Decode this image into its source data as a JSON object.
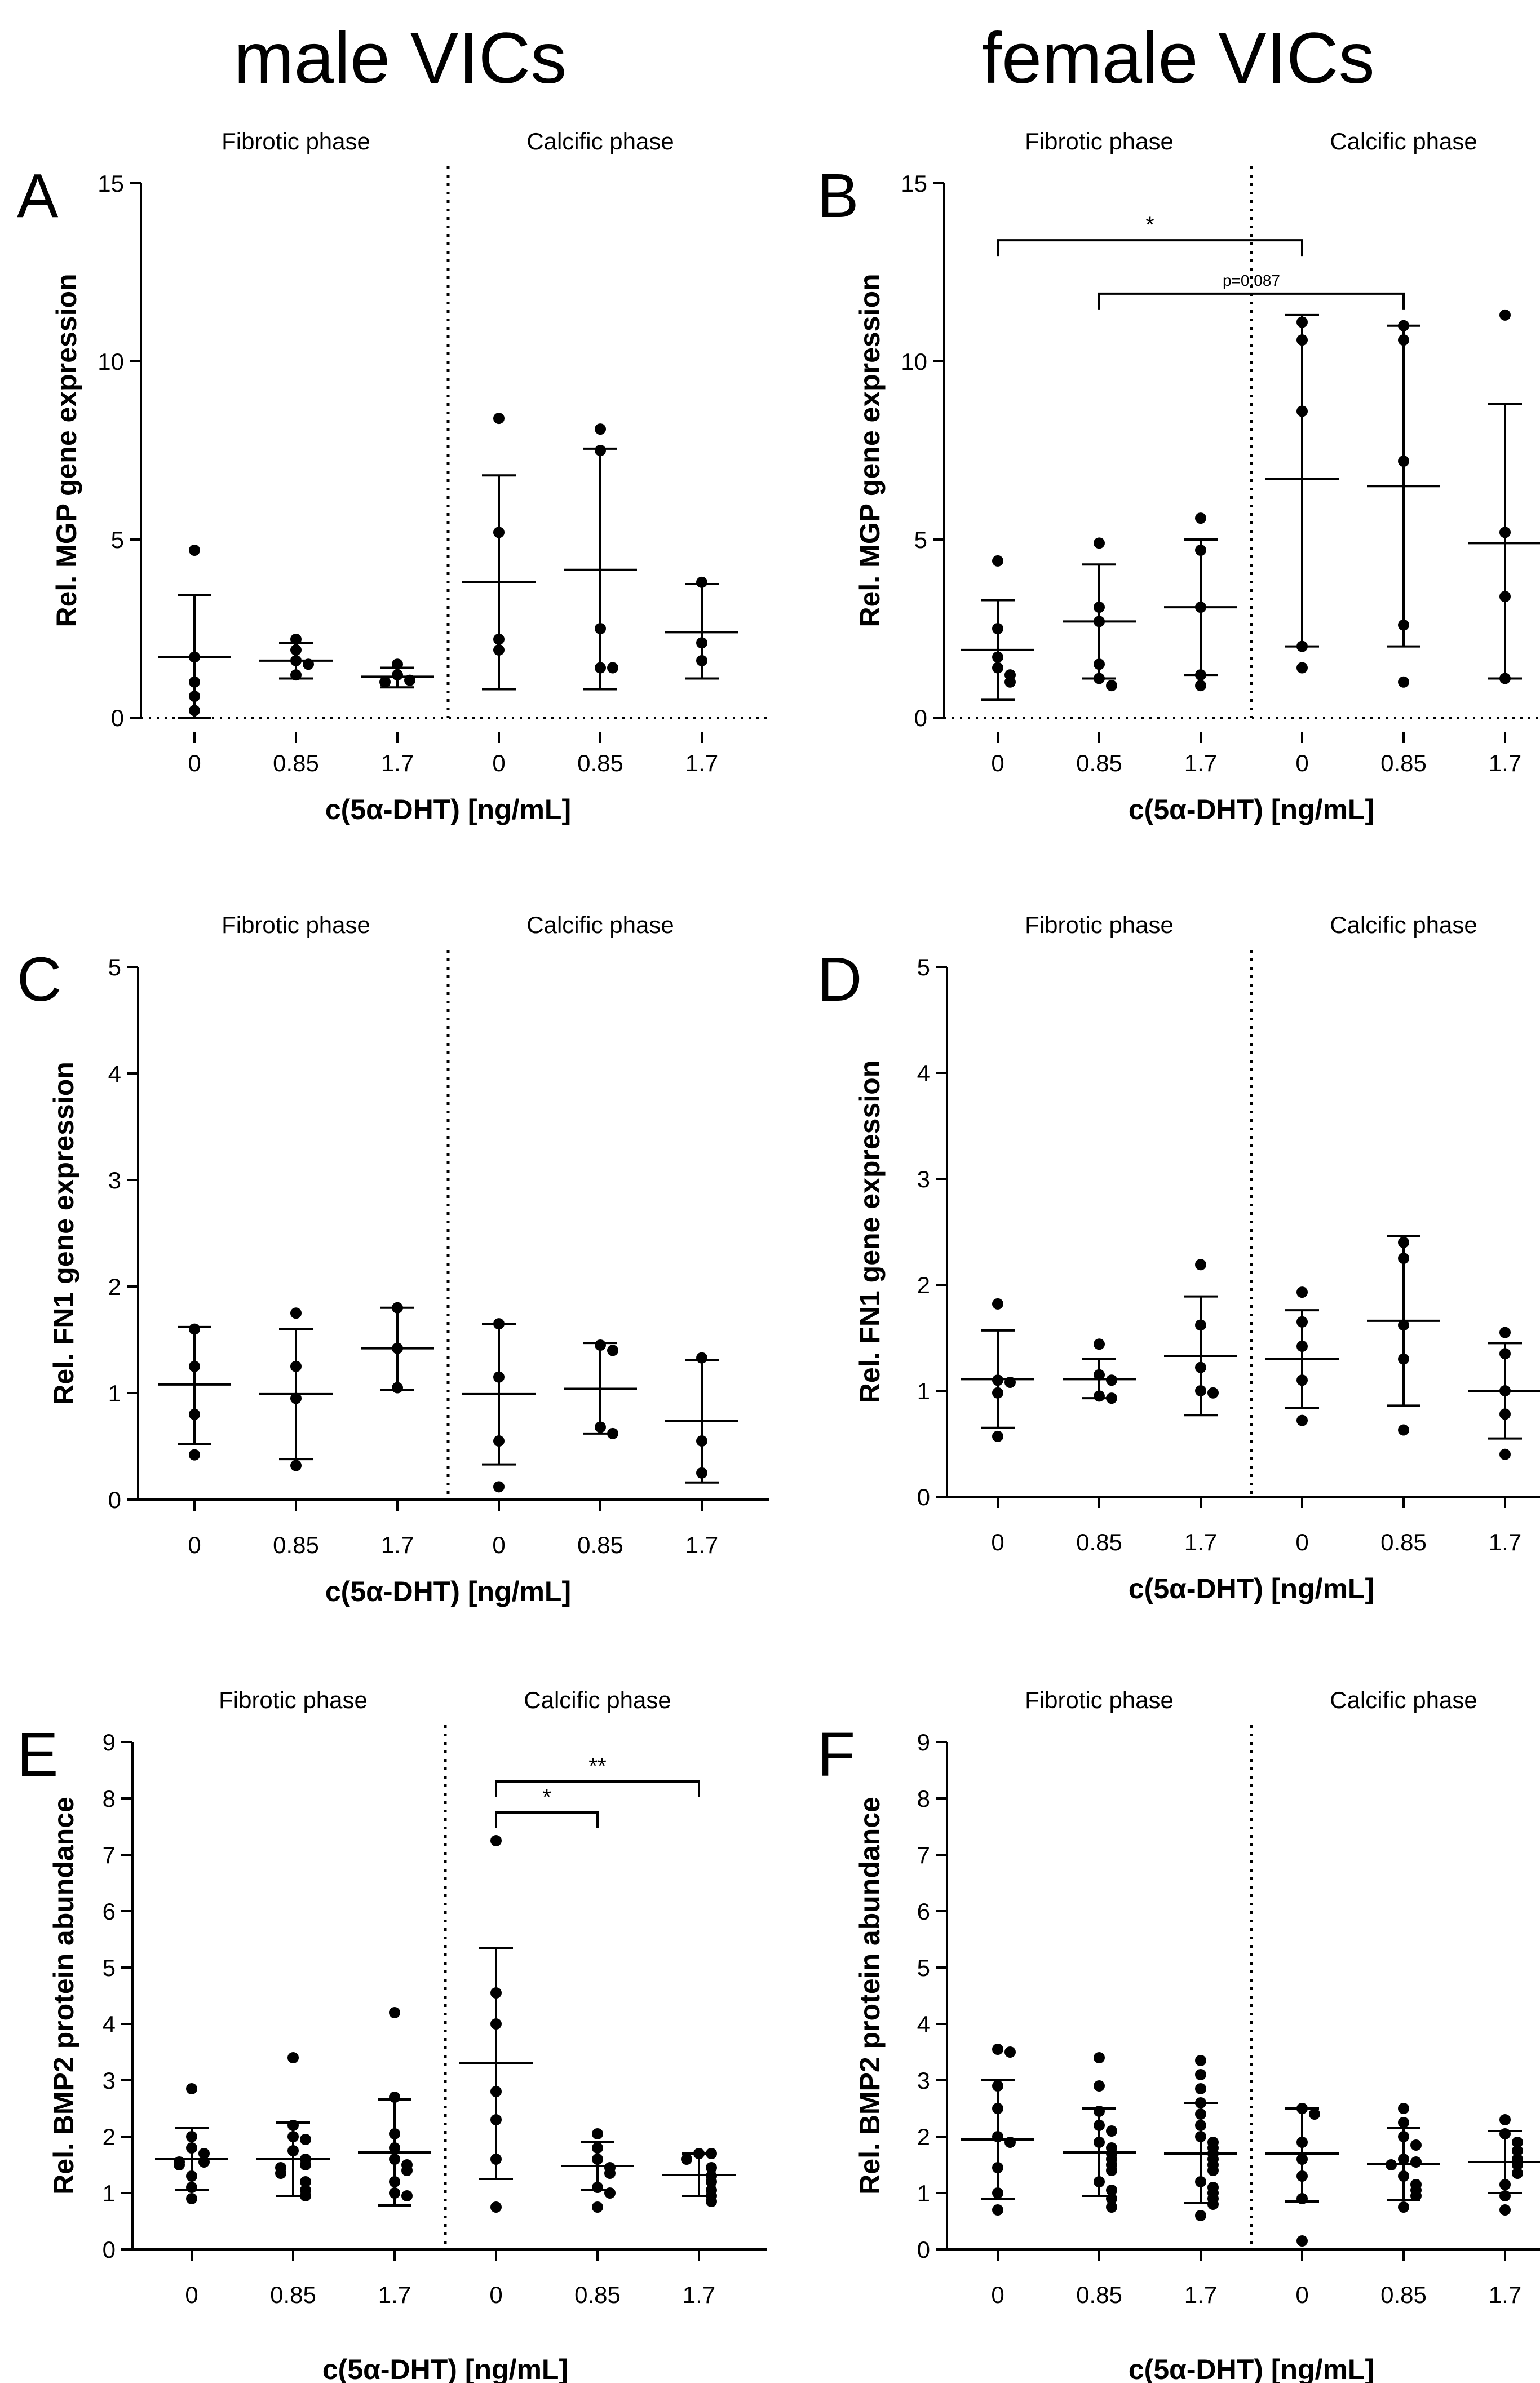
{
  "figure": {
    "column_titles": [
      "male VICs",
      "female VICs"
    ]
  },
  "chart_data": [
    {
      "type": "scatter",
      "panel_letter": "A",
      "phase_labels": [
        "Fibrotic phase",
        "Calcific phase"
      ],
      "categories": [
        "0",
        "0.85",
        "1.7",
        "0",
        "0.85",
        "1.7"
      ],
      "xlabel": "c(5α-DHT) [ng/mL]",
      "ylabel": "Rel. MGP gene expression",
      "ylim": [
        0,
        15
      ],
      "yticks": [
        0,
        5,
        10,
        15
      ],
      "groups": [
        {
          "points": [
            4.7,
            1.7,
            1.0,
            0.6,
            0.2
          ],
          "mean": 1.7,
          "sd_low": 0.0,
          "sd_high": 3.45
        },
        {
          "points": [
            2.2,
            1.9,
            1.6,
            1.5,
            1.2
          ],
          "mean": 1.6,
          "sd_low": 1.1,
          "sd_high": 2.1
        },
        {
          "points": [
            1.5,
            1.2,
            1.05,
            1.0
          ],
          "mean": 1.15,
          "sd_low": 0.85,
          "sd_high": 1.4
        },
        {
          "points": [
            8.4,
            5.2,
            2.2,
            1.9
          ],
          "mean": 3.8,
          "sd_low": 0.8,
          "sd_high": 6.8
        },
        {
          "points": [
            8.1,
            7.5,
            2.5,
            1.4,
            1.4
          ],
          "mean": 4.15,
          "sd_low": 0.8,
          "sd_high": 7.55
        },
        {
          "points": [
            3.8,
            2.1,
            1.6
          ],
          "mean": 2.4,
          "sd_low": 1.1,
          "sd_high": 3.75
        }
      ],
      "significance": []
    },
    {
      "type": "scatter",
      "panel_letter": "B",
      "phase_labels": [
        "Fibrotic phase",
        "Calcific phase"
      ],
      "categories": [
        "0",
        "0.85",
        "1.7",
        "0",
        "0.85",
        "1.7"
      ],
      "xlabel": "c(5α-DHT) [ng/mL]",
      "ylabel": "Rel. MGP gene expression",
      "ylim": [
        0,
        15
      ],
      "yticks": [
        0,
        5,
        10,
        15
      ],
      "groups": [
        {
          "points": [
            4.4,
            2.5,
            1.7,
            1.4,
            1.2,
            1.0
          ],
          "mean": 1.9,
          "sd_low": 0.5,
          "sd_high": 3.3
        },
        {
          "points": [
            4.9,
            3.1,
            2.7,
            1.5,
            1.1,
            0.9
          ],
          "mean": 2.7,
          "sd_low": 1.1,
          "sd_high": 4.3
        },
        {
          "points": [
            5.6,
            4.7,
            3.1,
            1.2,
            0.9
          ],
          "mean": 3.1,
          "sd_low": 1.2,
          "sd_high": 5.0
        },
        {
          "points": [
            11.1,
            10.6,
            8.6,
            2.0,
            1.4
          ],
          "mean": 6.7,
          "sd_low": 2.0,
          "sd_high": 11.3
        },
        {
          "points": [
            11.0,
            10.6,
            7.2,
            2.6,
            1.0
          ],
          "mean": 6.5,
          "sd_low": 2.0,
          "sd_high": 11.0
        },
        {
          "points": [
            11.3,
            5.2,
            3.4,
            1.1
          ],
          "mean": 4.9,
          "sd_low": 1.1,
          "sd_high": 8.8
        }
      ],
      "significance": [
        {
          "from": 0,
          "to": 3,
          "y": 13.4,
          "label": "*"
        },
        {
          "from": 1,
          "to": 4,
          "y": 11.9,
          "label": "p=0.087"
        }
      ]
    },
    {
      "type": "scatter",
      "panel_letter": "C",
      "phase_labels": [
        "Fibrotic phase",
        "Calcific phase"
      ],
      "categories": [
        "0",
        "0.85",
        "1.7",
        "0",
        "0.85",
        "1.7"
      ],
      "xlabel": "c(5α-DHT) [ng/mL]",
      "ylabel": "Rel. FN1 gene expression",
      "ylim": [
        0,
        5
      ],
      "yticks": [
        0,
        1,
        2,
        3,
        4,
        5
      ],
      "groups": [
        {
          "points": [
            1.6,
            1.25,
            0.8,
            0.42
          ],
          "mean": 1.08,
          "sd_low": 0.52,
          "sd_high": 1.62
        },
        {
          "points": [
            1.75,
            1.25,
            0.95,
            0.32
          ],
          "mean": 0.99,
          "sd_low": 0.38,
          "sd_high": 1.6
        },
        {
          "points": [
            1.8,
            1.42,
            1.05
          ],
          "mean": 1.42,
          "sd_low": 1.03,
          "sd_high": 1.8
        },
        {
          "points": [
            1.65,
            1.15,
            0.55,
            0.12
          ],
          "mean": 0.99,
          "sd_low": 0.33,
          "sd_high": 1.65
        },
        {
          "points": [
            1.45,
            1.4,
            0.68,
            0.62
          ],
          "mean": 1.04,
          "sd_low": 0.62,
          "sd_high": 1.47
        },
        {
          "points": [
            1.33,
            0.55,
            0.25
          ],
          "mean": 0.74,
          "sd_low": 0.16,
          "sd_high": 1.31
        }
      ],
      "significance": []
    },
    {
      "type": "scatter",
      "panel_letter": "D",
      "phase_labels": [
        "Fibrotic phase",
        "Calcific phase"
      ],
      "categories": [
        "0",
        "0.85",
        "1.7",
        "0",
        "0.85",
        "1.7"
      ],
      "xlabel": "c(5α-DHT) [ng/mL]",
      "ylabel": "Rel. FN1 gene expression",
      "ylim": [
        0,
        5
      ],
      "yticks": [
        0,
        1,
        2,
        3,
        4,
        5
      ],
      "groups": [
        {
          "points": [
            1.82,
            1.1,
            1.08,
            0.98,
            0.57
          ],
          "mean": 1.11,
          "sd_low": 0.65,
          "sd_high": 1.57
        },
        {
          "points": [
            1.44,
            1.15,
            1.1,
            0.95,
            0.93
          ],
          "mean": 1.11,
          "sd_low": 0.93,
          "sd_high": 1.3
        },
        {
          "points": [
            2.19,
            1.62,
            1.22,
            1.0,
            0.98
          ],
          "mean": 1.33,
          "sd_low": 0.77,
          "sd_high": 1.89
        },
        {
          "points": [
            1.93,
            1.65,
            1.42,
            1.1,
            0.72
          ],
          "mean": 1.3,
          "sd_low": 0.84,
          "sd_high": 1.76
        },
        {
          "points": [
            2.4,
            2.25,
            1.62,
            1.3,
            0.63
          ],
          "mean": 1.66,
          "sd_low": 0.86,
          "sd_high": 2.46
        },
        {
          "points": [
            1.55,
            1.35,
            1.0,
            0.78,
            0.4
          ],
          "mean": 1.0,
          "sd_low": 0.55,
          "sd_high": 1.45
        }
      ],
      "significance": []
    },
    {
      "type": "scatter",
      "panel_letter": "E",
      "phase_labels": [
        "Fibrotic phase",
        "Calcific phase"
      ],
      "categories": [
        "0",
        "0.85",
        "1.7",
        "0",
        "0.85",
        "1.7"
      ],
      "xlabel": "c(5α-DHT) [ng/mL]",
      "ylabel": "Rel. BMP2 protein abundance",
      "ylim": [
        0,
        9
      ],
      "yticks": [
        0,
        1,
        2,
        3,
        4,
        5,
        6,
        7,
        8,
        9
      ],
      "groups": [
        {
          "points": [
            2.85,
            2.0,
            1.8,
            1.7,
            1.55,
            1.55,
            1.5,
            1.3,
            1.1,
            0.9
          ],
          "mean": 1.6,
          "sd_low": 1.05,
          "sd_high": 2.15
        },
        {
          "points": [
            3.4,
            2.2,
            2.0,
            1.95,
            1.75,
            1.6,
            1.5,
            1.45,
            1.35,
            1.2,
            1.05,
            0.95
          ],
          "mean": 1.6,
          "sd_low": 0.95,
          "sd_high": 2.25
        },
        {
          "points": [
            4.2,
            2.7,
            2.05,
            1.8,
            1.6,
            1.5,
            1.4,
            1.2,
            1.0,
            0.95
          ],
          "mean": 1.72,
          "sd_low": 0.78,
          "sd_high": 2.66
        },
        {
          "points": [
            7.25,
            4.55,
            4.0,
            2.8,
            2.3,
            1.6,
            0.75
          ],
          "mean": 3.3,
          "sd_low": 1.25,
          "sd_high": 5.35
        },
        {
          "points": [
            2.05,
            1.8,
            1.6,
            1.45,
            1.35,
            1.1,
            1.0,
            0.75
          ],
          "mean": 1.48,
          "sd_low": 1.05,
          "sd_high": 1.9
        },
        {
          "points": [
            1.7,
            1.7,
            1.6,
            1.45,
            1.3,
            1.2,
            1.05,
            0.95,
            0.85
          ],
          "mean": 1.32,
          "sd_low": 0.95,
          "sd_high": 1.7
        }
      ],
      "significance": [
        {
          "from": 3,
          "to": 4,
          "y": 7.75,
          "label": "*"
        },
        {
          "from": 3,
          "to": 5,
          "y": 8.3,
          "label": "**"
        }
      ]
    },
    {
      "type": "scatter",
      "panel_letter": "F",
      "phase_labels": [
        "Fibrotic phase",
        "Calcific phase"
      ],
      "categories": [
        "0",
        "0.85",
        "1.7",
        "0",
        "0.85",
        "1.7"
      ],
      "xlabel": "c(5α-DHT) [ng/mL]",
      "ylabel": "Rel. BMP2 protein abundance",
      "ylim": [
        0,
        9
      ],
      "yticks": [
        0,
        1,
        2,
        3,
        4,
        5,
        6,
        7,
        8,
        9
      ],
      "groups": [
        {
          "points": [
            3.55,
            3.5,
            2.9,
            2.5,
            2.0,
            1.9,
            1.45,
            1.0,
            0.7
          ],
          "mean": 1.95,
          "sd_low": 0.9,
          "sd_high": 3.0
        },
        {
          "points": [
            3.4,
            2.9,
            2.45,
            2.2,
            2.1,
            1.9,
            1.8,
            1.7,
            1.6,
            1.5,
            1.4,
            1.2,
            1.05,
            0.9,
            0.75
          ],
          "mean": 1.72,
          "sd_low": 0.95,
          "sd_high": 2.5
        },
        {
          "points": [
            3.35,
            3.1,
            2.85,
            2.6,
            2.4,
            2.2,
            2.0,
            1.9,
            1.8,
            1.7,
            1.6,
            1.5,
            1.4,
            1.2,
            1.1,
            1.0,
            0.9,
            0.8,
            0.6
          ],
          "mean": 1.7,
          "sd_low": 0.82,
          "sd_high": 2.6
        },
        {
          "points": [
            2.5,
            2.4,
            1.9,
            1.6,
            1.3,
            0.9,
            0.15
          ],
          "mean": 1.7,
          "sd_low": 0.85,
          "sd_high": 2.5
        },
        {
          "points": [
            2.5,
            2.25,
            2.0,
            1.85,
            1.6,
            1.55,
            1.5,
            1.3,
            1.15,
            1.05,
            0.95,
            0.75
          ],
          "mean": 1.52,
          "sd_low": 0.88,
          "sd_high": 2.15
        },
        {
          "points": [
            2.3,
            2.05,
            1.9,
            1.75,
            1.6,
            1.5,
            1.35,
            1.15,
            0.95,
            0.7
          ],
          "mean": 1.55,
          "sd_low": 1.0,
          "sd_high": 2.1
        }
      ],
      "significance": []
    }
  ]
}
